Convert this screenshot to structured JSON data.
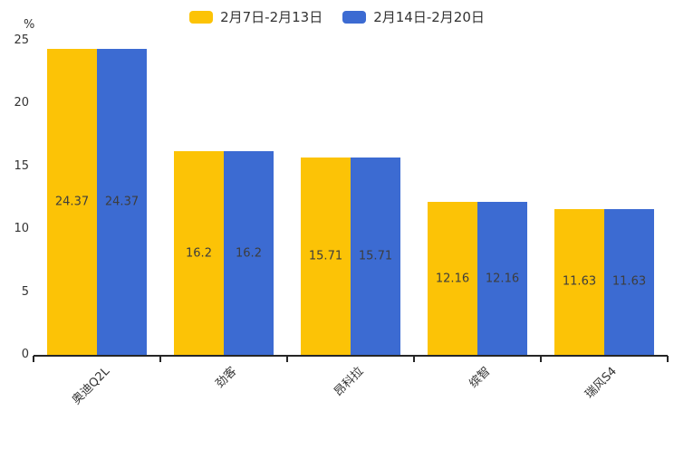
{
  "chart_data": {
    "type": "bar",
    "title": "",
    "categories": [
      "奥迪Q2L",
      "劲客",
      "昂科拉",
      "缤智",
      "瑞风S4"
    ],
    "series": [
      {
        "name": "2月7日-2月13日",
        "color": "#FCC306",
        "values": [
          24.37,
          16.2,
          15.71,
          12.16,
          11.63
        ]
      },
      {
        "name": "2月14日-2月20日",
        "color": "#3C6BD2",
        "values": [
          24.37,
          16.2,
          15.71,
          12.16,
          11.63
        ]
      }
    ],
    "xlabel": "",
    "ylabel": "%",
    "yticks": [
      0,
      5,
      10,
      15,
      20,
      25
    ],
    "ylim": [
      0,
      25
    ],
    "grid": false,
    "legend_position": "top",
    "value_labels": "centered-inside-bars",
    "colors": {
      "axis": "#262626",
      "tick_text": "#333333",
      "value_label_text": "#3d3d3d",
      "background": "#ffffff"
    }
  }
}
